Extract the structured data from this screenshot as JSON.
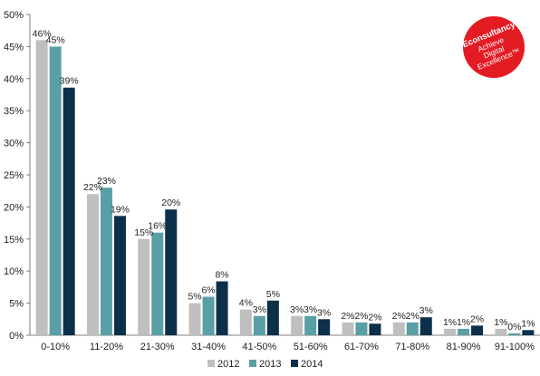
{
  "chart_data": {
    "type": "bar",
    "categories": [
      "0-10%",
      "11-20%",
      "21-30%",
      "31-40%",
      "41-50%",
      "51-60%",
      "61-70%",
      "71-80%",
      "81-90%",
      "91-100%"
    ],
    "series": [
      {
        "name": "2012",
        "values": [
          46,
          22,
          15,
          5,
          4,
          3,
          2,
          2,
          1,
          1
        ],
        "labels": [
          "46%",
          "22%",
          "15%",
          "5%",
          "4%",
          "3%",
          "2%",
          "2%",
          "1%",
          "1%"
        ],
        "color": "#bfbfbf"
      },
      {
        "name": "2013",
        "values": [
          45,
          23,
          16,
          6,
          3,
          3,
          2,
          2,
          1,
          0.3
        ],
        "labels": [
          "45%",
          "23%",
          "16%",
          "6%",
          "3%",
          "3%",
          "2%",
          "2%",
          "1%",
          "0%"
        ],
        "color": "#5b9fa6"
      },
      {
        "name": "2014",
        "values": [
          38.6,
          18.6,
          19.6,
          8.4,
          5.4,
          2.5,
          1.8,
          2.8,
          1.5,
          0.8
        ],
        "labels": [
          "39%",
          "19%",
          "20%",
          "8%",
          "5%",
          "3%",
          "2%",
          "3%",
          "2%",
          "1%"
        ],
        "color": "#0c2f4a"
      }
    ],
    "y_ticks": [
      "0%",
      "5%",
      "10%",
      "15%",
      "20%",
      "25%",
      "30%",
      "35%",
      "40%",
      "45%",
      "50%"
    ],
    "ylim": [
      0,
      50
    ],
    "grid": false,
    "legend_position": "bottom-center",
    "title": "",
    "xlabel": "",
    "ylabel": ""
  },
  "logo": {
    "brand": "Econsultancy",
    "tagline_lines": [
      "Achieve",
      "Digital",
      "Excellence™"
    ],
    "color": "#e31b23"
  }
}
